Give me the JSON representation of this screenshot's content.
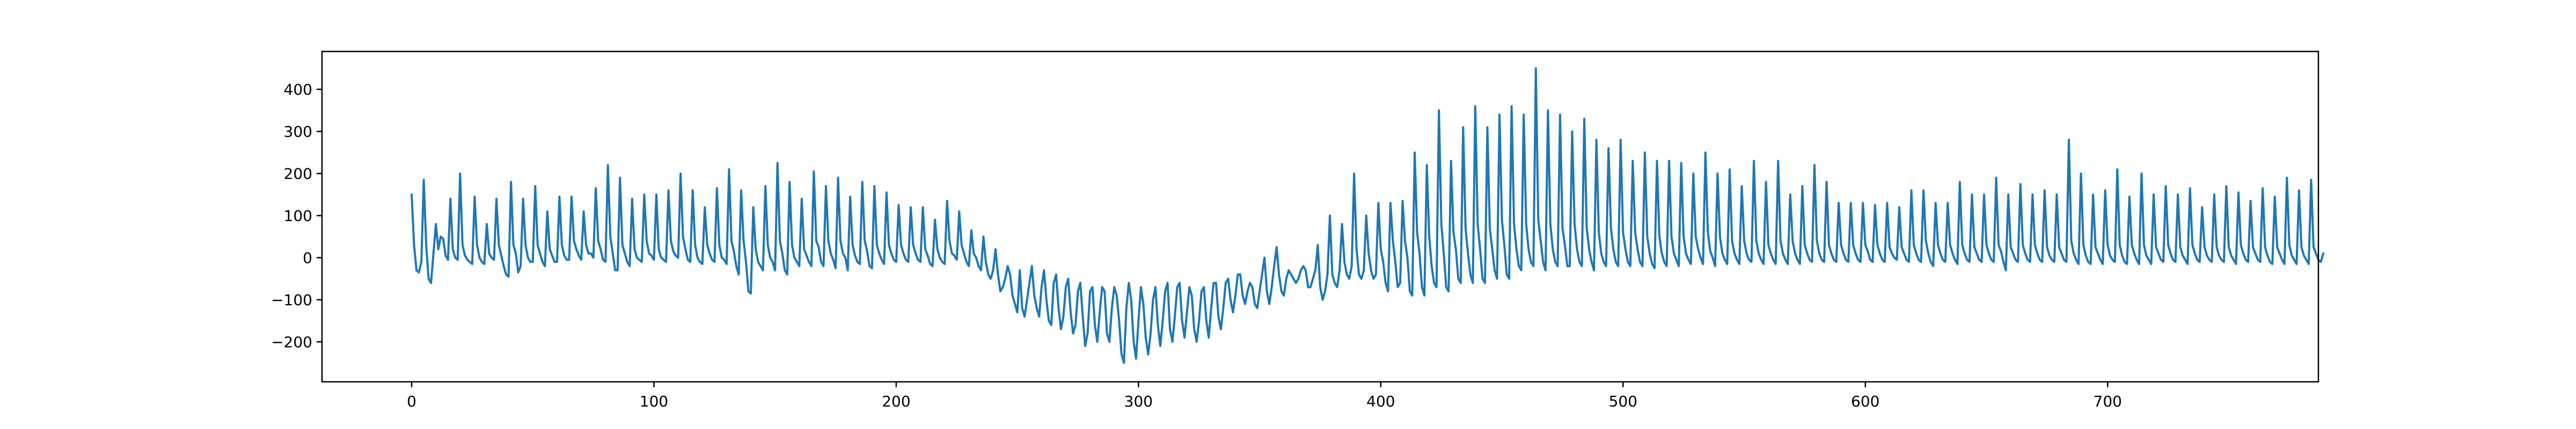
{
  "chart_data": {
    "type": "line",
    "title": "",
    "xlabel": "",
    "ylabel": "",
    "xlim": [
      -37,
      787
    ],
    "ylim": [
      -295,
      490
    ],
    "x_ticks": [
      0,
      100,
      200,
      300,
      400,
      500,
      600,
      700
    ],
    "x_tick_labels": [
      "0",
      "100",
      "200",
      "300",
      "400",
      "500",
      "600",
      "700"
    ],
    "y_ticks": [
      -200,
      -100,
      0,
      100,
      200,
      300,
      400
    ],
    "y_tick_labels": [
      "−200",
      "−100",
      "0",
      "100",
      "200",
      "300",
      "400"
    ],
    "grid": false,
    "legend": "none",
    "colors": {
      "series": "#1f77b4",
      "axes": "#000000",
      "background": "#ffffff"
    },
    "series": [
      {
        "x_start": 0,
        "x_step": 1,
        "values": [
          150,
          30,
          -30,
          -35,
          -10,
          185,
          30,
          -50,
          -60,
          10,
          80,
          20,
          50,
          45,
          5,
          -5,
          140,
          20,
          0,
          -5,
          200,
          30,
          5,
          -5,
          -10,
          -15,
          145,
          30,
          0,
          -10,
          -15,
          80,
          10,
          0,
          -5,
          140,
          30,
          5,
          -20,
          -40,
          -45,
          180,
          30,
          10,
          -35,
          -20,
          140,
          30,
          0,
          -10,
          -10,
          170,
          30,
          10,
          -10,
          -20,
          110,
          20,
          5,
          -10,
          -10,
          145,
          30,
          5,
          -5,
          -5,
          145,
          40,
          20,
          5,
          -5,
          110,
          30,
          10,
          10,
          0,
          165,
          40,
          20,
          -5,
          -10,
          220,
          50,
          10,
          -30,
          -30,
          190,
          30,
          10,
          -10,
          -20,
          140,
          20,
          0,
          -5,
          -10,
          150,
          40,
          10,
          5,
          -5,
          150,
          20,
          0,
          -5,
          -10,
          160,
          40,
          15,
          5,
          0,
          200,
          50,
          20,
          -5,
          -10,
          160,
          30,
          0,
          -10,
          -15,
          120,
          30,
          10,
          -5,
          -10,
          165,
          30,
          0,
          -5,
          -15,
          210,
          40,
          15,
          -20,
          -40,
          160,
          40,
          -10,
          -80,
          -85,
          120,
          20,
          -10,
          -20,
          -30,
          170,
          30,
          0,
          -10,
          -30,
          225,
          40,
          10,
          -30,
          -40,
          180,
          30,
          0,
          -10,
          -20,
          140,
          20,
          5,
          -10,
          -20,
          205,
          40,
          25,
          -10,
          -20,
          170,
          40,
          10,
          -5,
          -25,
          190,
          40,
          10,
          0,
          -30,
          145,
          30,
          5,
          -10,
          -15,
          180,
          40,
          15,
          -20,
          -25,
          170,
          30,
          10,
          -5,
          -15,
          155,
          30,
          10,
          -5,
          -10,
          125,
          30,
          10,
          -5,
          -10,
          120,
          30,
          10,
          -5,
          -10,
          120,
          20,
          5,
          -15,
          -20,
          90,
          20,
          0,
          -10,
          -15,
          135,
          40,
          10,
          5,
          -5,
          110,
          30,
          10,
          -10,
          -20,
          65,
          10,
          0,
          -20,
          -30,
          50,
          -10,
          -40,
          -50,
          -30,
          20,
          -40,
          -80,
          -70,
          -50,
          -20,
          -40,
          -90,
          -110,
          -130,
          -30,
          -120,
          -140,
          -100,
          -60,
          -20,
          -90,
          -120,
          -140,
          -70,
          -30,
          -100,
          -150,
          -160,
          -60,
          -40,
          -120,
          -170,
          -140,
          -70,
          -50,
          -130,
          -180,
          -160,
          -80,
          -60,
          -140,
          -210,
          -180,
          -80,
          -70,
          -160,
          -200,
          -130,
          -70,
          -80,
          -180,
          -200,
          -120,
          -70,
          -90,
          -150,
          -230,
          -250,
          -120,
          -60,
          -100,
          -200,
          -240,
          -150,
          -70,
          -110,
          -190,
          -230,
          -180,
          -100,
          -70,
          -160,
          -210,
          -150,
          -80,
          -60,
          -170,
          -200,
          -140,
          -70,
          -60,
          -150,
          -190,
          -130,
          -70,
          -90,
          -170,
          -200,
          -150,
          -80,
          -70,
          -150,
          -190,
          -120,
          -60,
          -60,
          -140,
          -170,
          -120,
          -60,
          -50,
          -100,
          -130,
          -90,
          -40,
          -40,
          -90,
          -110,
          -80,
          -60,
          -70,
          -110,
          -120,
          -80,
          -40,
          0,
          -80,
          -110,
          -70,
          -20,
          25,
          -40,
          -80,
          -90,
          -50,
          -30,
          -40,
          -50,
          -60,
          -50,
          -30,
          -20,
          -30,
          -70,
          -70,
          -50,
          -30,
          30,
          -70,
          -100,
          -80,
          -40,
          100,
          -40,
          -60,
          -70,
          -30,
          80,
          -10,
          -40,
          -50,
          -20,
          200,
          20,
          -40,
          -50,
          -30,
          100,
          10,
          -30,
          -50,
          -40,
          130,
          20,
          -10,
          -60,
          -80,
          130,
          40,
          -10,
          -70,
          -60,
          135,
          40,
          0,
          -80,
          -90,
          250,
          60,
          10,
          -70,
          -90,
          220,
          50,
          -20,
          -60,
          -70,
          350,
          80,
          10,
          -70,
          -80,
          230,
          60,
          20,
          -50,
          -60,
          310,
          70,
          10,
          -40,
          -60,
          360,
          80,
          20,
          -50,
          -60,
          310,
          70,
          20,
          -30,
          -50,
          340,
          90,
          30,
          -40,
          -50,
          360,
          80,
          20,
          -20,
          -30,
          340,
          80,
          20,
          -10,
          -20,
          450,
          90,
          40,
          -10,
          -30,
          350,
          80,
          20,
          -10,
          -20,
          340,
          70,
          30,
          -20,
          -20,
          300,
          80,
          20,
          -10,
          -20,
          330,
          70,
          20,
          -10,
          -30,
          280,
          60,
          10,
          -10,
          -20,
          260,
          70,
          20,
          -10,
          -20,
          280,
          60,
          20,
          -10,
          -20,
          230,
          60,
          20,
          -10,
          -20,
          250,
          50,
          10,
          -15,
          -25,
          230,
          50,
          10,
          -10,
          -20,
          230,
          50,
          10,
          -5,
          -20,
          225,
          50,
          10,
          -5,
          -15,
          200,
          50,
          20,
          0,
          -15,
          250,
          60,
          15,
          0,
          -20,
          200,
          50,
          10,
          -5,
          -15,
          210,
          40,
          10,
          -5,
          -15,
          170,
          40,
          10,
          -5,
          -10,
          230,
          40,
          10,
          -5,
          -15,
          180,
          30,
          10,
          -5,
          -15,
          230,
          40,
          10,
          -5,
          -15,
          150,
          40,
          10,
          -5,
          -15,
          170,
          30,
          10,
          -5,
          -10,
          220,
          40,
          10,
          -5,
          -10,
          180,
          30,
          10,
          -5,
          -10,
          130,
          30,
          10,
          -5,
          -10,
          130,
          30,
          10,
          -5,
          -10,
          130,
          30,
          15,
          -5,
          -10,
          125,
          30,
          10,
          -5,
          -10,
          130,
          25,
          10,
          0,
          -5,
          120,
          25,
          10,
          -5,
          -10,
          160,
          30,
          10,
          -5,
          -10,
          160,
          40,
          10,
          -10,
          -20,
          130,
          30,
          10,
          -5,
          -10,
          130,
          30,
          10,
          -5,
          -15,
          180,
          30,
          10,
          -5,
          -10,
          150,
          25,
          10,
          -5,
          -10,
          150,
          30,
          10,
          -5,
          -10,
          190,
          30,
          15,
          -10,
          -30,
          150,
          25,
          10,
          -5,
          -10,
          175,
          30,
          10,
          -5,
          -10,
          150,
          30,
          10,
          -5,
          -10,
          160,
          25,
          5,
          -5,
          -10,
          150,
          25,
          10,
          -5,
          -10,
          280,
          40,
          10,
          -5,
          -15,
          200,
          30,
          5,
          -10,
          -15,
          150,
          25,
          10,
          -5,
          -15,
          160,
          30,
          5,
          -5,
          -10,
          210,
          30,
          5,
          -10,
          -15,
          145,
          30,
          10,
          -5,
          -15,
          200,
          30,
          5,
          -5,
          -15,
          150,
          25,
          10,
          -5,
          -10,
          170,
          30,
          10,
          -5,
          -10,
          150,
          25,
          5,
          -5,
          -15,
          165,
          30,
          10,
          -5,
          -10,
          120,
          25,
          5,
          -5,
          -10,
          150,
          25,
          5,
          -5,
          -10,
          170,
          25,
          5,
          -5,
          -15,
          155,
          30,
          10,
          -5,
          -10,
          135,
          25,
          10,
          -5,
          -10,
          165,
          25,
          5,
          -10,
          -15,
          145,
          25,
          10,
          -5,
          -15,
          190,
          30,
          5,
          -5,
          -15,
          160,
          25,
          5,
          -5,
          -15,
          185,
          25,
          10,
          -5,
          -10,
          10
        ]
      }
    ]
  }
}
